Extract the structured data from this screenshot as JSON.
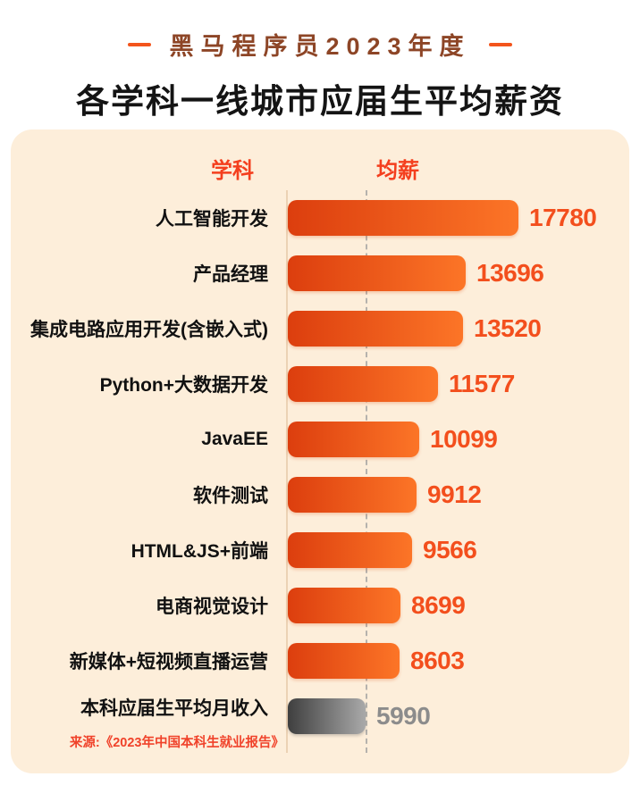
{
  "header": {
    "subtitle": "黑马程序员2023年度",
    "title": "各学科一线城市应届生平均薪资"
  },
  "table": {
    "col_subject": "学科",
    "col_salary": "均薪"
  },
  "source": "来源:《2023年中国本科生就业报告》",
  "colors": {
    "accent_red": "#f43f1e",
    "value_orange": "#f34f1d",
    "bar_gradient_start": "#dc3e0e",
    "bar_gradient_end": "#fc7527",
    "reference_bar_start": "#3f3f3f",
    "reference_bar_end": "#a9a9a9",
    "reference_value_gray": "#8c8c8c",
    "card_background": "#fdeeda",
    "subtitle_brown": "#8d4526"
  },
  "chart_data": {
    "type": "bar",
    "orientation": "horizontal",
    "title": "各学科一线城市应届生平均薪资",
    "subtitle": "黑马程序员2023年度",
    "xlabel": "均薪",
    "ylabel": "学科",
    "categories": [
      "人工智能开发",
      "产品经理",
      "集成电路应用开发(含嵌入式)",
      "Python+大数据开发",
      "JavaEE",
      "软件测试",
      "HTML&JS+前端",
      "电商视觉设计",
      "新媒体+短视频直播运营",
      "本科应届生平均月收入"
    ],
    "values": [
      17780,
      13696,
      13520,
      11577,
      10099,
      9912,
      9566,
      8699,
      8603,
      5990
    ],
    "reference_index": 9,
    "reference_line_value": 5990,
    "xlim": [
      0,
      18000
    ],
    "grid": false,
    "legend": "none",
    "source": "来源:《2023年中国本科生就业报告》"
  }
}
